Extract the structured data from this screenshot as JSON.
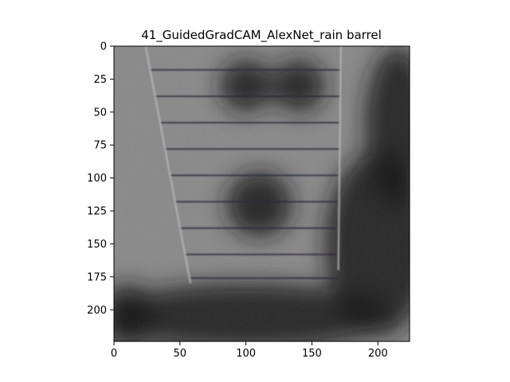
{
  "chart_data": {
    "type": "heatmap",
    "title": "41_GuidedGradCAM_AlexNet_rain barrel",
    "xlim": [
      0,
      224
    ],
    "ylim": [
      224,
      0
    ],
    "x_ticks": [
      0,
      50,
      100,
      150,
      200
    ],
    "y_ticks": [
      0,
      25,
      50,
      75,
      100,
      125,
      150,
      175,
      200
    ],
    "colormap": "grayscale guided-grad-cam overlay",
    "grid": false,
    "legend": "none",
    "features": {
      "slat_lines_y": [
        18,
        38,
        58,
        78,
        98,
        118,
        138,
        158,
        176
      ],
      "left_edge": [
        [
          24,
          0
        ],
        [
          58,
          180
        ]
      ],
      "right_edge": [
        [
          172,
          0
        ],
        [
          170,
          170
        ]
      ],
      "dark_regions": [
        {
          "cx": 215,
          "cy": 60,
          "rx": 25,
          "ry": 60
        },
        {
          "cx": 200,
          "cy": 150,
          "rx": 40,
          "ry": 70
        },
        {
          "cx": 100,
          "cy": 205,
          "rx": 110,
          "ry": 25
        },
        {
          "cx": 10,
          "cy": 205,
          "rx": 20,
          "ry": 25
        },
        {
          "cx": 100,
          "cy": 30,
          "rx": 20,
          "ry": 20
        },
        {
          "cx": 140,
          "cy": 30,
          "rx": 20,
          "ry": 20
        },
        {
          "cx": 110,
          "cy": 120,
          "rx": 25,
          "ry": 25
        }
      ]
    }
  }
}
